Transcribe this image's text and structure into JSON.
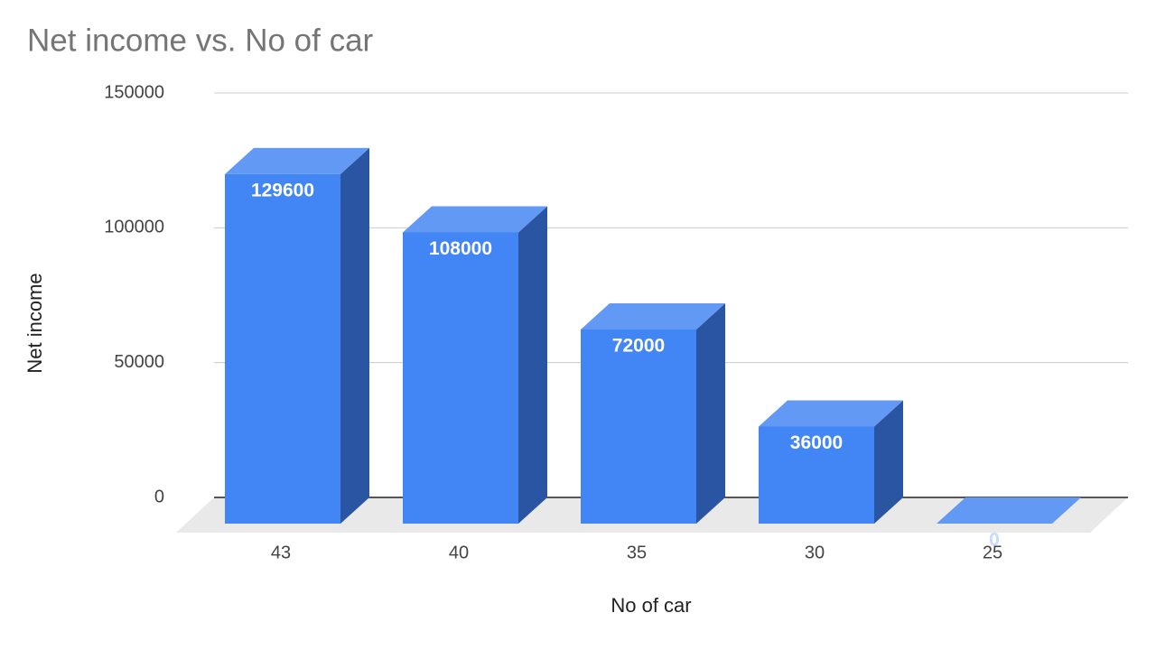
{
  "chart_data": {
    "type": "bar",
    "title": "Net income vs. No of car",
    "x_label": "No of car",
    "y_label": "Net income",
    "categories": [
      "43",
      "40",
      "35",
      "30",
      "25"
    ],
    "values": [
      129600,
      108000,
      72000,
      36000,
      0
    ],
    "color": "#4285f4",
    "ylim": [
      0,
      150000
    ],
    "yticks": [
      0,
      50000,
      100000,
      150000
    ],
    "grid": true
  }
}
